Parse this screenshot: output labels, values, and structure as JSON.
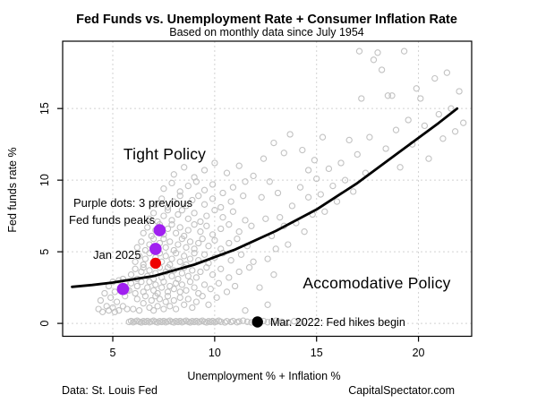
{
  "header": {
    "title": "Fed Funds vs. Unemployment Rate + Consumer Inflation Rate",
    "subtitle": "Based on monthly data since July 1954"
  },
  "footer": {
    "source": "Data: St. Louis Fed",
    "site": "CapitalSpectator.com"
  },
  "colors": {
    "scatter": "#c2c2c2",
    "grid": "#d2d2d2",
    "trend": "#000000",
    "purple": "#a020f0",
    "red": "#ee0000",
    "black": "#000000",
    "axis": "#000000"
  },
  "chart_data": {
    "type": "scatter",
    "title": "Fed Funds vs. Unemployment Rate + Consumer Inflation Rate",
    "subtitle": "Based on monthly data since July 1954",
    "xlabel": "Unemployment % + Inflation %",
    "ylabel": "Fed funds rate %",
    "xlim": [
      2.54,
      22.61
    ],
    "ylim": [
      -0.9,
      19.7
    ],
    "x_ticks": [
      5,
      10,
      15,
      20
    ],
    "y_ticks": [
      0,
      5,
      10,
      15
    ],
    "grid": "dashed",
    "legend": "none",
    "annotations": {
      "tight_policy": "Tight Policy",
      "accommodative_policy": "Accomodative Policy",
      "purple_note_line1": "Purple dots: 3 previous",
      "purple_note_line2": "Fed funds peaks",
      "jan_2025_label": "Jan 2025",
      "mar_2022_label": "Mar. 2022: Fed hikes begin"
    },
    "highlight_points": [
      {
        "name": "fed-funds-peak-2000",
        "x": 7.3,
        "y": 6.5,
        "type": "purple"
      },
      {
        "name": "fed-funds-peak-2006",
        "x": 7.1,
        "y": 5.2,
        "type": "purple"
      },
      {
        "name": "fed-funds-peak-2019",
        "x": 5.5,
        "y": 2.4,
        "type": "purple"
      },
      {
        "name": "jan-2025-point",
        "x": 7.1,
        "y": 4.2,
        "type": "red"
      },
      {
        "name": "mar-2022-point",
        "x": 12.1,
        "y": 0.1,
        "type": "black"
      }
    ],
    "trend_line": [
      [
        3.0,
        2.55
      ],
      [
        4,
        2.68
      ],
      [
        5,
        2.85
      ],
      [
        7,
        3.3
      ],
      [
        9,
        4.1
      ],
      [
        11,
        5.15
      ],
      [
        13,
        6.45
      ],
      [
        15,
        7.95
      ],
      [
        17,
        9.8
      ],
      [
        19,
        11.9
      ],
      [
        21,
        14.0
      ],
      [
        21.9,
        15.0
      ]
    ],
    "scatter": [
      [
        5.8,
        0.1
      ],
      [
        5.9,
        0.16
      ],
      [
        6.0,
        0.08
      ],
      [
        6.1,
        0.13
      ],
      [
        6.2,
        0.18
      ],
      [
        6.3,
        0.11
      ],
      [
        6.4,
        0.07
      ],
      [
        6.5,
        0.15
      ],
      [
        6.6,
        0.1
      ],
      [
        6.7,
        0.16
      ],
      [
        6.8,
        0.08
      ],
      [
        6.9,
        0.13
      ],
      [
        7.0,
        0.18
      ],
      [
        7.1,
        0.11
      ],
      [
        7.2,
        0.07
      ],
      [
        7.3,
        0.15
      ],
      [
        7.4,
        0.1
      ],
      [
        7.5,
        0.16
      ],
      [
        7.6,
        0.08
      ],
      [
        7.7,
        0.13
      ],
      [
        7.8,
        0.18
      ],
      [
        7.9,
        0.11
      ],
      [
        8.0,
        0.07
      ],
      [
        8.1,
        0.15
      ],
      [
        8.2,
        0.1
      ],
      [
        8.3,
        0.16
      ],
      [
        8.4,
        0.08
      ],
      [
        8.5,
        0.13
      ],
      [
        8.6,
        0.18
      ],
      [
        8.7,
        0.11
      ],
      [
        8.8,
        0.07
      ],
      [
        8.9,
        0.15
      ],
      [
        9.0,
        0.1
      ],
      [
        9.1,
        0.16
      ],
      [
        9.2,
        0.08
      ],
      [
        9.3,
        0.13
      ],
      [
        9.4,
        0.18
      ],
      [
        9.5,
        0.11
      ],
      [
        9.6,
        0.07
      ],
      [
        9.7,
        0.15
      ],
      [
        9.8,
        0.1
      ],
      [
        9.9,
        0.16
      ],
      [
        10.0,
        0.08
      ],
      [
        10.1,
        0.13
      ],
      [
        10.2,
        0.18
      ],
      [
        10.3,
        0.11
      ],
      [
        10.5,
        0.07
      ],
      [
        10.6,
        0.15
      ],
      [
        10.8,
        0.1
      ],
      [
        10.9,
        0.16
      ],
      [
        11.1,
        0.08
      ],
      [
        11.2,
        0.13
      ],
      [
        11.4,
        0.18
      ],
      [
        11.6,
        0.11
      ],
      [
        11.8,
        0.07
      ],
      [
        12.0,
        0.15
      ],
      [
        12.2,
        0.1
      ],
      [
        12.4,
        0.16
      ],
      [
        12.6,
        0.08
      ],
      [
        12.8,
        0.13
      ],
      [
        13.0,
        0.18
      ],
      [
        13.3,
        0.11
      ],
      [
        13.6,
        0.07
      ],
      [
        13.9,
        0.15
      ],
      [
        14.2,
        0.1
      ],
      [
        14.4,
        0.13
      ],
      [
        4.3,
        1.0
      ],
      [
        4.4,
        1.6
      ],
      [
        4.5,
        0.8
      ],
      [
        4.6,
        2.1
      ],
      [
        4.7,
        1.2
      ],
      [
        4.8,
        0.9
      ],
      [
        4.8,
        2.6
      ],
      [
        4.9,
        1.8
      ],
      [
        5.0,
        1.1
      ],
      [
        5.0,
        2.9
      ],
      [
        5.1,
        0.8
      ],
      [
        5.1,
        2.2
      ],
      [
        5.2,
        1.5
      ],
      [
        5.3,
        3.0
      ],
      [
        5.3,
        0.9
      ],
      [
        5.4,
        2.4
      ],
      [
        5.5,
        1.2
      ],
      [
        5.5,
        3.1
      ],
      [
        5.6,
        1.9
      ],
      [
        5.6,
        2.8
      ],
      [
        5.7,
        1.0
      ],
      [
        5.7,
        2.3
      ],
      [
        6.0,
        1.0
      ],
      [
        6.2,
        1.7
      ],
      [
        6.3,
        0.9
      ],
      [
        6.5,
        1.4
      ],
      [
        6.6,
        1.9
      ],
      [
        6.8,
        1.1
      ],
      [
        6.9,
        1.6
      ],
      [
        7.0,
        0.9
      ],
      [
        7.1,
        1.9
      ],
      [
        7.2,
        1.2
      ],
      [
        7.3,
        1.7
      ],
      [
        7.5,
        1.0
      ],
      [
        7.6,
        1.5
      ],
      [
        7.7,
        1.9
      ],
      [
        7.8,
        1.2
      ],
      [
        8.0,
        1.6
      ],
      [
        8.1,
        1.0
      ],
      [
        8.3,
        1.8
      ],
      [
        8.5,
        1.3
      ],
      [
        8.7,
        1.7
      ],
      [
        8.9,
        1.1
      ],
      [
        9.1,
        1.5
      ],
      [
        9.4,
        1.9
      ],
      [
        9.7,
        1.3
      ],
      [
        10.1,
        1.8
      ],
      [
        5.8,
        2.3
      ],
      [
        5.9,
        2.8
      ],
      [
        6.1,
        2.1
      ],
      [
        6.2,
        2.6
      ],
      [
        6.4,
        2.9
      ],
      [
        6.5,
        2.2
      ],
      [
        6.7,
        2.5
      ],
      [
        6.8,
        2.9
      ],
      [
        7.0,
        2.3
      ],
      [
        7.1,
        2.7
      ],
      [
        7.2,
        2.1
      ],
      [
        7.4,
        2.5
      ],
      [
        7.5,
        2.9
      ],
      [
        7.7,
        2.2
      ],
      [
        7.8,
        2.6
      ],
      [
        8.0,
        2.4
      ],
      [
        8.1,
        2.8
      ],
      [
        8.3,
        2.2
      ],
      [
        8.4,
        2.7
      ],
      [
        8.6,
        2.3
      ],
      [
        8.8,
        2.9
      ],
      [
        9.0,
        2.5
      ],
      [
        9.2,
        2.1
      ],
      [
        9.5,
        2.7
      ],
      [
        9.8,
        2.4
      ],
      [
        10.2,
        2.8
      ],
      [
        10.6,
        2.2
      ],
      [
        11.0,
        2.6
      ],
      [
        5.9,
        3.4
      ],
      [
        6.1,
        3.8
      ],
      [
        6.2,
        3.1
      ],
      [
        6.4,
        3.6
      ],
      [
        6.5,
        3.9
      ],
      [
        6.7,
        3.3
      ],
      [
        6.8,
        3.7
      ],
      [
        7.0,
        3.1
      ],
      [
        7.1,
        3.5
      ],
      [
        7.3,
        3.9
      ],
      [
        7.4,
        3.2
      ],
      [
        7.6,
        3.6
      ],
      [
        7.7,
        3.9
      ],
      [
        7.9,
        3.3
      ],
      [
        8.0,
        3.7
      ],
      [
        8.2,
        3.1
      ],
      [
        8.4,
        3.5
      ],
      [
        8.5,
        3.9
      ],
      [
        8.7,
        3.3
      ],
      [
        8.9,
        3.7
      ],
      [
        9.1,
        3.2
      ],
      [
        9.3,
        3.6
      ],
      [
        9.6,
        3.9
      ],
      [
        9.9,
        3.4
      ],
      [
        10.3,
        3.8
      ],
      [
        10.7,
        3.2
      ],
      [
        11.2,
        3.6
      ],
      [
        11.7,
        3.9
      ],
      [
        6.1,
        4.3
      ],
      [
        6.3,
        4.7
      ],
      [
        6.5,
        4.1
      ],
      [
        6.6,
        4.5
      ],
      [
        6.8,
        4.9
      ],
      [
        7.0,
        4.2
      ],
      [
        7.1,
        4.6
      ],
      [
        7.3,
        4.9
      ],
      [
        7.4,
        4.3
      ],
      [
        7.6,
        4.7
      ],
      [
        7.8,
        4.1
      ],
      [
        7.9,
        4.5
      ],
      [
        8.1,
        4.9
      ],
      [
        8.3,
        4.3
      ],
      [
        8.5,
        4.7
      ],
      [
        8.6,
        4.1
      ],
      [
        8.8,
        4.5
      ],
      [
        9.0,
        4.9
      ],
      [
        9.2,
        4.4
      ],
      [
        9.5,
        4.8
      ],
      [
        9.7,
        4.2
      ],
      [
        10.0,
        4.6
      ],
      [
        10.4,
        4.9
      ],
      [
        10.8,
        4.4
      ],
      [
        11.3,
        4.8
      ],
      [
        11.9,
        4.3
      ],
      [
        6.2,
        5.3
      ],
      [
        6.4,
        5.7
      ],
      [
        6.6,
        5.1
      ],
      [
        6.8,
        5.5
      ],
      [
        7.0,
        5.9
      ],
      [
        7.1,
        5.2
      ],
      [
        7.3,
        5.6
      ],
      [
        7.5,
        5.9
      ],
      [
        7.6,
        5.3
      ],
      [
        7.8,
        5.7
      ],
      [
        8.0,
        5.1
      ],
      [
        8.2,
        5.5
      ],
      [
        8.4,
        5.9
      ],
      [
        8.6,
        5.3
      ],
      [
        8.8,
        5.7
      ],
      [
        9.0,
        5.2
      ],
      [
        9.2,
        5.6
      ],
      [
        9.4,
        5.9
      ],
      [
        9.7,
        5.4
      ],
      [
        10.0,
        5.8
      ],
      [
        10.3,
        5.2
      ],
      [
        10.7,
        5.6
      ],
      [
        11.1,
        5.9
      ],
      [
        11.6,
        5.4
      ],
      [
        6.5,
        6.3
      ],
      [
        6.7,
        6.7
      ],
      [
        6.9,
        6.1
      ],
      [
        7.1,
        6.5
      ],
      [
        7.3,
        6.9
      ],
      [
        7.5,
        6.2
      ],
      [
        7.7,
        6.6
      ],
      [
        7.9,
        6.9
      ],
      [
        8.1,
        6.3
      ],
      [
        8.3,
        6.7
      ],
      [
        8.5,
        6.1
      ],
      [
        8.7,
        6.5
      ],
      [
        9.0,
        6.9
      ],
      [
        9.3,
        6.4
      ],
      [
        9.6,
        6.8
      ],
      [
        9.9,
        6.2
      ],
      [
        10.3,
        6.6
      ],
      [
        10.7,
        6.9
      ],
      [
        11.2,
        6.4
      ],
      [
        11.8,
        6.8
      ],
      [
        6.8,
        7.3
      ],
      [
        7.0,
        7.7
      ],
      [
        7.2,
        7.1
      ],
      [
        7.5,
        7.5
      ],
      [
        7.7,
        7.9
      ],
      [
        7.9,
        7.2
      ],
      [
        8.2,
        7.6
      ],
      [
        8.4,
        7.9
      ],
      [
        8.7,
        7.3
      ],
      [
        9.0,
        7.7
      ],
      [
        9.3,
        7.1
      ],
      [
        9.6,
        7.5
      ],
      [
        10.0,
        7.9
      ],
      [
        10.4,
        7.4
      ],
      [
        10.9,
        7.8
      ],
      [
        11.5,
        7.2
      ],
      [
        7.1,
        8.3
      ],
      [
        7.4,
        8.7
      ],
      [
        7.7,
        8.1
      ],
      [
        8.0,
        8.5
      ],
      [
        8.3,
        8.9
      ],
      [
        8.6,
        8.2
      ],
      [
        8.9,
        8.6
      ],
      [
        9.2,
        8.9
      ],
      [
        9.5,
        8.3
      ],
      [
        9.9,
        8.7
      ],
      [
        10.3,
        8.1
      ],
      [
        10.8,
        8.5
      ],
      [
        11.4,
        8.9
      ],
      [
        7.5,
        9.4
      ],
      [
        7.9,
        9.8
      ],
      [
        8.3,
        9.2
      ],
      [
        8.7,
        9.6
      ],
      [
        9.1,
        9.9
      ],
      [
        9.5,
        9.3
      ],
      [
        9.9,
        9.7
      ],
      [
        10.4,
        9.1
      ],
      [
        10.9,
        9.5
      ],
      [
        11.5,
        9.9
      ],
      [
        8.0,
        10.4
      ],
      [
        8.5,
        10.9
      ],
      [
        9.0,
        10.2
      ],
      [
        9.5,
        10.7
      ],
      [
        10.0,
        11.2
      ],
      [
        10.6,
        10.5
      ],
      [
        11.2,
        11.0
      ],
      [
        11.9,
        10.3
      ],
      [
        12.3,
        8.8
      ],
      [
        12.7,
        9.9
      ],
      [
        12.5,
        7.3
      ],
      [
        13.1,
        9.1
      ],
      [
        12.4,
        11.5
      ],
      [
        13.4,
        11.9
      ],
      [
        12.9,
        12.6
      ],
      [
        13.7,
        13.2
      ],
      [
        14.3,
        12.1
      ],
      [
        14.9,
        11.4
      ],
      [
        15.3,
        13.0
      ],
      [
        14.6,
        10.7
      ],
      [
        12.6,
        4.5
      ],
      [
        12.8,
        6.1
      ],
      [
        13.0,
        5.2
      ],
      [
        13.2,
        7.4
      ],
      [
        13.4,
        6.8
      ],
      [
        13.6,
        5.5
      ],
      [
        13.8,
        8.2
      ],
      [
        14.0,
        7.0
      ],
      [
        14.2,
        9.5
      ],
      [
        14.4,
        6.4
      ],
      [
        14.6,
        8.8
      ],
      [
        14.8,
        7.6
      ],
      [
        15.0,
        10.1
      ],
      [
        15.2,
        9.0
      ],
      [
        15.4,
        7.8
      ],
      [
        15.6,
        10.8
      ],
      [
        15.8,
        9.6
      ],
      [
        16.0,
        8.5
      ],
      [
        16.2,
        11.2
      ],
      [
        16.4,
        10.0
      ],
      [
        16.6,
        12.8
      ],
      [
        16.8,
        9.2
      ],
      [
        17.0,
        11.8
      ],
      [
        17.1,
        19.0
      ],
      [
        17.2,
        15.7
      ],
      [
        17.4,
        10.5
      ],
      [
        17.6,
        13.0
      ],
      [
        17.8,
        18.4
      ],
      [
        18.0,
        18.9
      ],
      [
        18.2,
        17.7
      ],
      [
        18.4,
        12.2
      ],
      [
        18.5,
        15.9
      ],
      [
        18.7,
        15.9
      ],
      [
        18.9,
        13.5
      ],
      [
        19.1,
        10.9
      ],
      [
        19.3,
        19.0
      ],
      [
        19.5,
        14.2
      ],
      [
        19.7,
        12.5
      ],
      [
        19.9,
        16.4
      ],
      [
        20.1,
        15.7
      ],
      [
        20.3,
        13.8
      ],
      [
        20.5,
        11.5
      ],
      [
        20.8,
        17.1
      ],
      [
        21.0,
        14.6
      ],
      [
        21.2,
        12.9
      ],
      [
        21.4,
        17.5
      ],
      [
        21.6,
        15.0
      ],
      [
        21.8,
        13.4
      ],
      [
        22.0,
        16.2
      ],
      [
        22.2,
        14.0
      ],
      [
        12.6,
        1.3
      ],
      [
        11.5,
        0.9
      ],
      [
        12.2,
        2.5
      ],
      [
        12.9,
        3.4
      ]
    ]
  }
}
